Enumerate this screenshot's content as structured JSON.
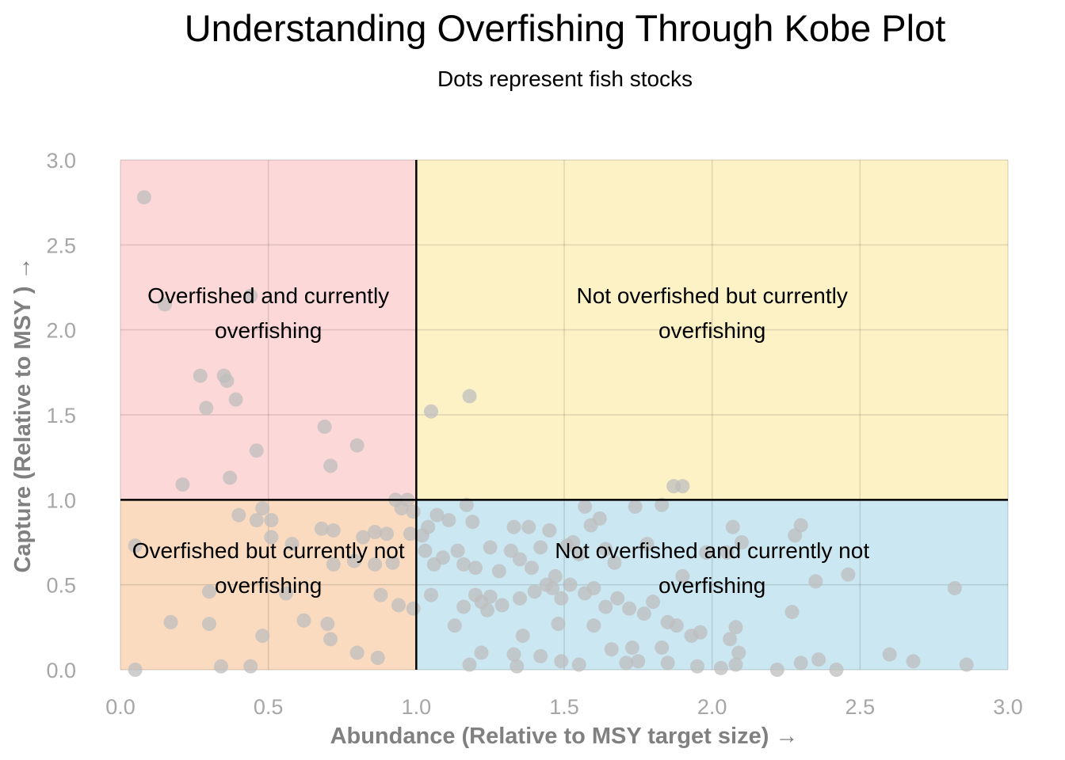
{
  "chart_data": {
    "type": "scatter",
    "title": "Understanding Overfishing Through Kobe Plot",
    "subtitle": "Dots represent fish stocks",
    "xlabel": "Abundance (Relative to MSY target size) →",
    "ylabel": "Capture (Relative to MSY ) →",
    "xlim": [
      0,
      3
    ],
    "ylim": [
      0,
      3
    ],
    "x_ticks": [
      "0.0",
      "0.5",
      "1.0",
      "1.5",
      "2.0",
      "2.5",
      "3.0"
    ],
    "y_ticks": [
      "0.0",
      "0.5",
      "1.0",
      "1.5",
      "2.0",
      "2.5",
      "3.0"
    ],
    "grid": true,
    "reference_lines": {
      "x": 1.0,
      "y": 1.0
    },
    "quadrants": [
      {
        "label_line1": "Overfished and currently",
        "label_line2": "overfishing",
        "x_range": [
          0,
          1
        ],
        "y_range": [
          1,
          3
        ],
        "color": "#fdd8d8",
        "label_x": 0.5,
        "label_y": 2.1
      },
      {
        "label_line1": "Not overfished but currently",
        "label_line2": "overfishing",
        "x_range": [
          1,
          3
        ],
        "y_range": [
          1,
          3
        ],
        "color": "#fdf2c6",
        "label_x": 2.0,
        "label_y": 2.1
      },
      {
        "label_line1": "Overfished but currently not",
        "label_line2": "overfishing",
        "x_range": [
          0,
          1
        ],
        "y_range": [
          0,
          1
        ],
        "color": "#fadbc0",
        "label_x": 0.5,
        "label_y": 0.6
      },
      {
        "label_line1": "Not overfished and currently not",
        "label_line2": "overfishing",
        "x_range": [
          1,
          3
        ],
        "y_range": [
          0,
          1
        ],
        "color": "#cbe7f1",
        "label_x": 2.0,
        "label_y": 0.6
      }
    ],
    "point_color": "#bdbdbd",
    "points": [
      [
        0.08,
        2.78
      ],
      [
        0.15,
        2.15
      ],
      [
        0.44,
        2.2
      ],
      [
        0.27,
        1.73
      ],
      [
        0.35,
        1.73
      ],
      [
        0.36,
        1.7
      ],
      [
        0.39,
        1.59
      ],
      [
        0.29,
        1.54
      ],
      [
        0.69,
        1.43
      ],
      [
        0.8,
        1.32
      ],
      [
        0.46,
        1.29
      ],
      [
        0.71,
        1.2
      ],
      [
        0.37,
        1.13
      ],
      [
        0.21,
        1.09
      ],
      [
        0.93,
        1.0
      ],
      [
        0.97,
        1.0
      ],
      [
        0.48,
        0.95
      ],
      [
        0.95,
        0.95
      ],
      [
        0.99,
        0.93
      ],
      [
        0.4,
        0.91
      ],
      [
        0.46,
        0.88
      ],
      [
        0.51,
        0.88
      ],
      [
        0.68,
        0.83
      ],
      [
        0.72,
        0.82
      ],
      [
        0.86,
        0.81
      ],
      [
        0.9,
        0.8
      ],
      [
        0.82,
        0.78
      ],
      [
        0.98,
        0.8
      ],
      [
        0.51,
        0.78
      ],
      [
        0.05,
        0.73
      ],
      [
        0.58,
        0.74
      ],
      [
        0.72,
        0.62
      ],
      [
        0.79,
        0.64
      ],
      [
        0.86,
        0.62
      ],
      [
        0.92,
        0.63
      ],
      [
        0.3,
        0.46
      ],
      [
        0.56,
        0.45
      ],
      [
        0.88,
        0.44
      ],
      [
        0.94,
        0.38
      ],
      [
        0.99,
        0.36
      ],
      [
        0.17,
        0.28
      ],
      [
        0.3,
        0.27
      ],
      [
        0.62,
        0.29
      ],
      [
        0.7,
        0.27
      ],
      [
        0.71,
        0.18
      ],
      [
        0.48,
        0.2
      ],
      [
        0.8,
        0.1
      ],
      [
        0.87,
        0.07
      ],
      [
        0.34,
        0.02
      ],
      [
        0.44,
        0.02
      ],
      [
        0.05,
        0.0
      ],
      [
        1.18,
        1.61
      ],
      [
        1.05,
        1.52
      ],
      [
        1.87,
        1.08
      ],
      [
        1.9,
        1.08
      ],
      [
        1.02,
        0.79
      ],
      [
        1.04,
        0.84
      ],
      [
        1.07,
        0.91
      ],
      [
        1.11,
        0.88
      ],
      [
        1.17,
        0.97
      ],
      [
        1.19,
        0.87
      ],
      [
        1.03,
        0.7
      ],
      [
        1.06,
        0.62
      ],
      [
        1.09,
        0.66
      ],
      [
        1.14,
        0.7
      ],
      [
        1.16,
        0.62
      ],
      [
        1.2,
        0.6
      ],
      [
        1.25,
        0.72
      ],
      [
        1.28,
        0.58
      ],
      [
        1.32,
        0.7
      ],
      [
        1.33,
        0.84
      ],
      [
        1.35,
        0.65
      ],
      [
        1.38,
        0.84
      ],
      [
        1.39,
        0.6
      ],
      [
        1.42,
        0.72
      ],
      [
        1.45,
        0.82
      ],
      [
        1.47,
        0.55
      ],
      [
        1.51,
        0.73
      ],
      [
        1.53,
        0.75
      ],
      [
        1.55,
        0.68
      ],
      [
        1.57,
        0.96
      ],
      [
        1.59,
        0.85
      ],
      [
        1.62,
        0.89
      ],
      [
        1.64,
        0.71
      ],
      [
        1.67,
        0.63
      ],
      [
        1.74,
        0.96
      ],
      [
        1.78,
        0.74
      ],
      [
        1.83,
        0.97
      ],
      [
        1.9,
        0.55
      ],
      [
        1.98,
        0.69
      ],
      [
        2.05,
        0.69
      ],
      [
        2.07,
        0.84
      ],
      [
        2.1,
        0.75
      ],
      [
        2.28,
        0.79
      ],
      [
        2.3,
        0.85
      ],
      [
        2.35,
        0.52
      ],
      [
        2.46,
        0.56
      ],
      [
        1.05,
        0.44
      ],
      [
        1.13,
        0.26
      ],
      [
        1.2,
        0.44
      ],
      [
        1.22,
        0.4
      ],
      [
        1.25,
        0.43
      ],
      [
        1.29,
        0.38
      ],
      [
        1.35,
        0.42
      ],
      [
        1.4,
        0.46
      ],
      [
        1.44,
        0.5
      ],
      [
        1.46,
        0.48
      ],
      [
        1.49,
        0.42
      ],
      [
        1.52,
        0.5
      ],
      [
        1.57,
        0.45
      ],
      [
        1.6,
        0.48
      ],
      [
        1.64,
        0.37
      ],
      [
        1.68,
        0.42
      ],
      [
        1.72,
        0.36
      ],
      [
        1.77,
        0.33
      ],
      [
        1.8,
        0.4
      ],
      [
        1.85,
        0.28
      ],
      [
        1.88,
        0.26
      ],
      [
        1.93,
        0.2
      ],
      [
        1.96,
        0.22
      ],
      [
        2.08,
        0.25
      ],
      [
        2.27,
        0.34
      ],
      [
        2.82,
        0.48
      ],
      [
        1.16,
        0.37
      ],
      [
        1.24,
        0.35
      ],
      [
        1.36,
        0.2
      ],
      [
        1.48,
        0.27
      ],
      [
        1.6,
        0.26
      ],
      [
        1.66,
        0.12
      ],
      [
        1.73,
        0.13
      ],
      [
        1.83,
        0.13
      ],
      [
        2.06,
        0.18
      ],
      [
        2.09,
        0.1
      ],
      [
        1.22,
        0.1
      ],
      [
        1.33,
        0.09
      ],
      [
        1.42,
        0.08
      ],
      [
        1.49,
        0.05
      ],
      [
        1.55,
        0.03
      ],
      [
        1.71,
        0.04
      ],
      [
        1.75,
        0.05
      ],
      [
        1.85,
        0.04
      ],
      [
        1.95,
        0.02
      ],
      [
        2.03,
        0.01
      ],
      [
        2.08,
        0.03
      ],
      [
        2.22,
        0.0
      ],
      [
        2.3,
        0.04
      ],
      [
        2.36,
        0.06
      ],
      [
        2.42,
        0.0
      ],
      [
        2.6,
        0.09
      ],
      [
        2.68,
        0.05
      ],
      [
        2.86,
        0.03
      ],
      [
        1.18,
        0.03
      ],
      [
        1.34,
        0.02
      ]
    ]
  }
}
